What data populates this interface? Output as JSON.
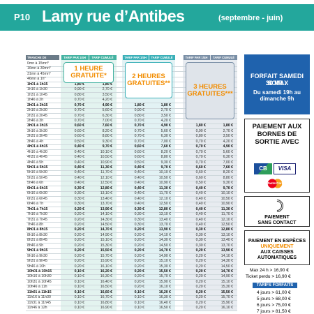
{
  "header": {
    "code": "P10",
    "title": "Lamy rue d’Antibes",
    "subtitle": "(septembre - juin)"
  },
  "table": {
    "label_header": "TRANCHE DE",
    "groups": [
      {
        "title": "1 HEURE GRATUITE*",
        "headers": [
          "TARIF PAR 1/4H",
          "TARIF CUMULÉ"
        ]
      },
      {
        "title": "2 HEURES GRATUITES**",
        "headers": [
          "TARIF PAR 1/4H",
          "TARIF CUMULÉ"
        ]
      },
      {
        "title": "3 HEURES GRATUITES***",
        "headers": [
          "TARIF PAR 1/4H",
          "TARIF CUMULÉ"
        ]
      }
    ],
    "rows": [
      [
        "0mn à 15mn*",
        null,
        null,
        null,
        null,
        null,
        null
      ],
      [
        "16mn à 30mn*",
        null,
        null,
        null,
        null,
        null,
        null
      ],
      [
        "31mn à 45mn*",
        null,
        null,
        null,
        null,
        null,
        null
      ],
      [
        "46mn à 1h*",
        null,
        null,
        null,
        null,
        null,
        null
      ],
      [
        "1h01 à 1h15",
        "1,80 €",
        "1,80 €",
        null,
        null,
        null,
        null
      ],
      [
        "1h16 à 1h30",
        "0,90 €",
        "2,70 €",
        null,
        null,
        null,
        null
      ],
      [
        "1h31 à 1h45",
        "0,80 €",
        "3,50 €",
        null,
        null,
        null,
        null
      ],
      [
        "1h46 à 2h",
        "0,70 €",
        "4,20 €",
        null,
        null,
        null,
        null
      ],
      [
        "2h01 à 2h15",
        "0,70 €",
        "4,90 €",
        "1,80 €",
        "1,80 €",
        null,
        null
      ],
      [
        "2h16 à 2h30",
        "0,70 €",
        "5,60 €",
        "0,90 €",
        "2,70 €",
        null,
        null
      ],
      [
        "2h31 à 2h45",
        "0,70 €",
        "6,30 €",
        "0,80 €",
        "3,50 €",
        null,
        null
      ],
      [
        "2h46 à 3h",
        "0,70 €",
        "7,00 €",
        "0,70 €",
        "4,20 €",
        null,
        null
      ],
      [
        "3h01 à 3h15",
        "0,60 €",
        "7,60 €",
        "0,70 €",
        "4,90 €",
        "1,80 €",
        "1,80 €"
      ],
      [
        "3h16 à 3h30",
        "0,60 €",
        "8,20 €",
        "0,70 €",
        "5,60 €",
        "0,90 €",
        "2,70 €"
      ],
      [
        "3h31 à 3h45",
        "0,60 €",
        "8,80 €",
        "0,70 €",
        "6,30 €",
        "0,80 €",
        "3,50 €"
      ],
      [
        "3h46 à 4h",
        "0,50 €",
        "9,30 €",
        "0,70 €",
        "7,00 €",
        "0,70 €",
        "4,20 €"
      ],
      [
        "4h01 à 4h15",
        "0,40 €",
        "9,70 €",
        "0,60 €",
        "7,60 €",
        "0,70 €",
        "4,90 €"
      ],
      [
        "4h16 à 4h30",
        "0,40 €",
        "10,10 €",
        "0,60 €",
        "8,20 €",
        "0,70 €",
        "5,60 €"
      ],
      [
        "4h31 à 4h45",
        "0,40 €",
        "10,50 €",
        "0,60 €",
        "8,80 €",
        "0,70 €",
        "6,30 €"
      ],
      [
        "4h46 à 5h",
        "0,40 €",
        "10,90 €",
        "0,50 €",
        "9,30 €",
        "0,70 €",
        "7,00 €"
      ],
      [
        "5h01 à 5h15",
        "0,40 €",
        "11,30 €",
        "0,40 €",
        "9,70 €",
        "0,60 €",
        "7,60 €"
      ],
      [
        "5h16 à 5h30",
        "0,40 €",
        "11,70 €",
        "0,40 €",
        "10,10 €",
        "0,60 €",
        "8,20 €"
      ],
      [
        "5h31 à 5h45",
        "0,40 €",
        "12,10 €",
        "0,40 €",
        "10,50 €",
        "0,60 €",
        "8,80 €"
      ],
      [
        "5h46 à 6h",
        "0,40 €",
        "12,50 €",
        "0,40 €",
        "10,90 €",
        "0,50 €",
        "9,30 €"
      ],
      [
        "6h01 à 6h15",
        "0,30 €",
        "12,80 €",
        "0,40 €",
        "11,30 €",
        "0,40 €",
        "9,70 €"
      ],
      [
        "6h16 à 6h30",
        "0,30 €",
        "13,10 €",
        "0,40 €",
        "11,70 €",
        "0,40 €",
        "10,10 €"
      ],
      [
        "6h31 à 6h45",
        "0,30 €",
        "13,40 €",
        "0,40 €",
        "12,10 €",
        "0,40 €",
        "10,50 €"
      ],
      [
        "6h46 à 7h",
        "0,30 €",
        "13,70 €",
        "0,40 €",
        "12,50 €",
        "0,40 €",
        "10,90 €"
      ],
      [
        "7h01 à 7h15",
        "0,20 €",
        "13,90 €",
        "0,30 €",
        "12,80 €",
        "0,40 €",
        "11,30 €"
      ],
      [
        "7h16 à 7h30",
        "0,20 €",
        "14,10 €",
        "0,30 €",
        "13,10 €",
        "0,40 €",
        "11,70 €"
      ],
      [
        "7h31 à 7h45",
        "0,20 €",
        "14,30 €",
        "0,30 €",
        "13,40 €",
        "0,40 €",
        "12,10 €"
      ],
      [
        "7h46 à 8h",
        "0,20 €",
        "14,50 €",
        "0,30 €",
        "13,70 €",
        "0,40 €",
        "12,50 €"
      ],
      [
        "8h01 à 8h15",
        "0,20 €",
        "14,70 €",
        "0,20 €",
        "13,90 €",
        "0,30 €",
        "12,80 €"
      ],
      [
        "8h16 à 8h30",
        "0,20 €",
        "14,90 €",
        "0,20 €",
        "14,10 €",
        "0,30 €",
        "13,10 €"
      ],
      [
        "8h31 à 8h45",
        "0,20 €",
        "15,10 €",
        "0,20 €",
        "14,30 €",
        "0,30 €",
        "13,40 €"
      ],
      [
        "8h46 à 9h",
        "0,20 €",
        "15,30 €",
        "0,20 €",
        "14,50 €",
        "0,30 €",
        "13,70 €"
      ],
      [
        "9h01 à 9h15",
        "0,20 €",
        "15,50 €",
        "0,20 €",
        "14,70 €",
        "0,20 €",
        "13,90 €"
      ],
      [
        "9h16 à 9h30",
        "0,20 €",
        "15,70 €",
        "0,20 €",
        "14,90 €",
        "0,20 €",
        "14,10 €"
      ],
      [
        "9h31 à 9h45",
        "0,20 €",
        "15,90 €",
        "0,20 €",
        "15,10 €",
        "0,20 €",
        "14,30 €"
      ],
      [
        "9h46 à 10h",
        "0,20 €",
        "16,10 €",
        "0,20 €",
        "15,30 €",
        "0,20 €",
        "14,50 €"
      ],
      [
        "10h01 à 10h15",
        "0,10 €",
        "16,20 €",
        "0,20 €",
        "15,50 €",
        "0,20 €",
        "14,70 €"
      ],
      [
        "10h16 à 10h30",
        "0,10 €",
        "16,30 €",
        "0,20 €",
        "15,70 €",
        "0,20 €",
        "14,90 €"
      ],
      [
        "10h31 à 10h45",
        "0,10 €",
        "16,40 €",
        "0,20 €",
        "15,90 €",
        "0,20 €",
        "15,10 €"
      ],
      [
        "10h46 à 11h",
        "0,10 €",
        "16,50 €",
        "0,20 €",
        "16,10 €",
        "0,20 €",
        "15,30 €"
      ],
      [
        "11h01 à 11h15",
        "0,10 €",
        "16,60 €",
        "0,10 €",
        "16,20 €",
        "0,20 €",
        "15,50 €"
      ],
      [
        "11h16 à 11h30",
        "0,10 €",
        "16,70 €",
        "0,10 €",
        "16,30 €",
        "0,20 €",
        "15,70 €"
      ],
      [
        "11h31 à 11h45",
        "0,10 €",
        "16,80 €",
        "0,10 €",
        "16,40 €",
        "0,20 €",
        "15,90 €"
      ],
      [
        "11h46 à 12h",
        "0,10 €",
        "16,90 €",
        "0,10 €",
        "16,50 €",
        "0,20 €",
        "16,10 €"
      ]
    ]
  },
  "side": {
    "forfait": {
      "title": "FORFAIT SAMEDI SOIR :",
      "price": "3€ MAX",
      "period": "Du samedi 19h au dimanche 9h"
    },
    "bornes": {
      "title": "PAIEMENT AUX BORNES DE SORTIE AVEC",
      "cards": [
        "CB",
        "VISA",
        "MasterCard"
      ]
    },
    "contact": {
      "title": "PAIEMENT",
      "subtitle": "SANS CONTACT"
    },
    "especes": {
      "title": "PAIEMENT EN ESPÈCES",
      "highlight": "UNIQUEMENT",
      "rest": "AUX CAISSES AUTOMATIQUES"
    },
    "max": "Max 24 h > 16,90 €",
    "lost": "Ticket perdu > 16,90 €",
    "forfaits": {
      "title": "TARIFS FORFAITS",
      "items": [
        "4 jours > 61,00 €",
        "5 jours > 68,00 €",
        "6 jours > 75,00 €",
        "7 jours > 81,50 €"
      ]
    }
  }
}
